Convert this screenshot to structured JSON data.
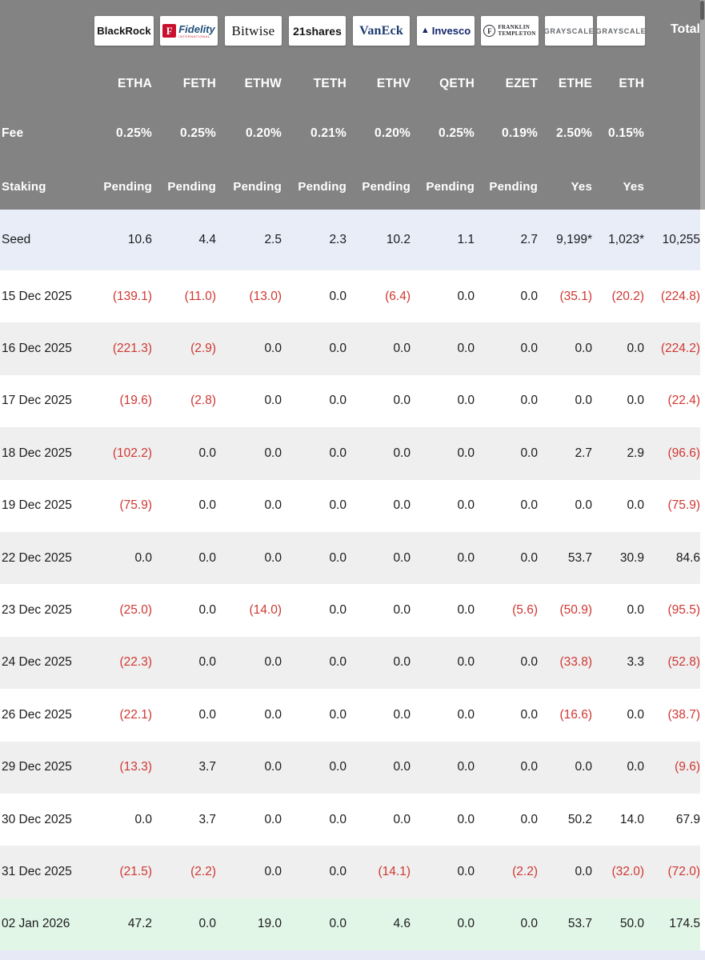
{
  "header": {
    "total_label": "Total",
    "row_labels": {
      "fee": "Fee",
      "staking": "Staking"
    },
    "providers": [
      {
        "name": "BlackRock",
        "logo_text": "BlackRock",
        "ticker": "ETHA",
        "fee": "0.25%",
        "staking": "Pending"
      },
      {
        "name": "Fidelity",
        "logo_text": "Fidelity",
        "logo_mark": "F",
        "logo_sub": "INTERNATIONAL",
        "ticker": "FETH",
        "fee": "0.25%",
        "staking": "Pending"
      },
      {
        "name": "Bitwise",
        "logo_text": "Bitwise",
        "ticker": "ETHW",
        "fee": "0.20%",
        "staking": "Pending"
      },
      {
        "name": "21shares",
        "logo_text": "21shares",
        "ticker": "TETH",
        "fee": "0.21%",
        "staking": "Pending"
      },
      {
        "name": "VanEck",
        "logo_text": "VanEck",
        "ticker": "ETHV",
        "fee": "0.20%",
        "staking": "Pending"
      },
      {
        "name": "Invesco",
        "logo_text": "Invesco",
        "logo_mark": "▲",
        "ticker": "QETH",
        "fee": "0.25%",
        "staking": "Pending"
      },
      {
        "name": "Franklin Templeton",
        "logo_text_line1": "FRANKLIN",
        "logo_text_line2": "TEMPLETON",
        "logo_mark": "F",
        "ticker": "EZET",
        "fee": "0.19%",
        "staking": "Pending"
      },
      {
        "name": "Grayscale",
        "logo_text": "GRAYSCALE",
        "ticker": "ETHE",
        "fee": "2.50%",
        "staking": "Yes"
      },
      {
        "name": "Grayscale",
        "logo_text": "GRAYSCALE",
        "ticker": "ETH",
        "fee": "0.15%",
        "staking": "Yes"
      }
    ]
  },
  "table": {
    "seed_row": {
      "label": "Seed",
      "values": [
        "10.6",
        "4.4",
        "2.5",
        "2.3",
        "10.2",
        "1.1",
        "2.7",
        "9,199*",
        "1,023*",
        "10,255"
      ]
    },
    "rows": [
      {
        "label": "15 Dec 2025",
        "values": [
          "(139.1)",
          "(11.0)",
          "(13.0)",
          "0.0",
          "(6.4)",
          "0.0",
          "0.0",
          "(35.1)",
          "(20.2)",
          "(224.8)"
        ]
      },
      {
        "label": "16 Dec 2025",
        "values": [
          "(221.3)",
          "(2.9)",
          "0.0",
          "0.0",
          "0.0",
          "0.0",
          "0.0",
          "0.0",
          "0.0",
          "(224.2)"
        ]
      },
      {
        "label": "17 Dec 2025",
        "values": [
          "(19.6)",
          "(2.8)",
          "0.0",
          "0.0",
          "0.0",
          "0.0",
          "0.0",
          "0.0",
          "0.0",
          "(22.4)"
        ]
      },
      {
        "label": "18 Dec 2025",
        "values": [
          "(102.2)",
          "0.0",
          "0.0",
          "0.0",
          "0.0",
          "0.0",
          "0.0",
          "2.7",
          "2.9",
          "(96.6)"
        ]
      },
      {
        "label": "19 Dec 2025",
        "values": [
          "(75.9)",
          "0.0",
          "0.0",
          "0.0",
          "0.0",
          "0.0",
          "0.0",
          "0.0",
          "0.0",
          "(75.9)"
        ]
      },
      {
        "label": "22 Dec 2025",
        "values": [
          "0.0",
          "0.0",
          "0.0",
          "0.0",
          "0.0",
          "0.0",
          "0.0",
          "53.7",
          "30.9",
          "84.6"
        ]
      },
      {
        "label": "23 Dec 2025",
        "values": [
          "(25.0)",
          "0.0",
          "(14.0)",
          "0.0",
          "0.0",
          "0.0",
          "(5.6)",
          "(50.9)",
          "0.0",
          "(95.5)"
        ]
      },
      {
        "label": "24 Dec 2025",
        "values": [
          "(22.3)",
          "0.0",
          "0.0",
          "0.0",
          "0.0",
          "0.0",
          "0.0",
          "(33.8)",
          "3.3",
          "(52.8)"
        ]
      },
      {
        "label": "26 Dec 2025",
        "values": [
          "(22.1)",
          "0.0",
          "0.0",
          "0.0",
          "0.0",
          "0.0",
          "0.0",
          "(16.6)",
          "0.0",
          "(38.7)"
        ]
      },
      {
        "label": "29 Dec 2025",
        "values": [
          "(13.3)",
          "3.7",
          "0.0",
          "0.0",
          "0.0",
          "0.0",
          "0.0",
          "0.0",
          "0.0",
          "(9.6)"
        ]
      },
      {
        "label": "30 Dec 2025",
        "values": [
          "0.0",
          "3.7",
          "0.0",
          "0.0",
          "0.0",
          "0.0",
          "0.0",
          "50.2",
          "14.0",
          "67.9"
        ]
      },
      {
        "label": "31 Dec 2025",
        "values": [
          "(21.5)",
          "(2.2)",
          "0.0",
          "0.0",
          "(14.1)",
          "0.0",
          "(2.2)",
          "0.0",
          "(32.0)",
          "(72.0)"
        ]
      },
      {
        "label": "02 Jan 2026",
        "values": [
          "47.2",
          "0.0",
          "19.0",
          "0.0",
          "4.6",
          "0.0",
          "0.0",
          "53.7",
          "50.0",
          "174.5"
        ],
        "highlight": "mint"
      }
    ]
  },
  "colors": {
    "header_bg": "#838383",
    "seed_bg": "#e9edf8",
    "row_alt": "#efefef",
    "mint_bg": "#e2f6e7",
    "partial_bg": "#e7eaf6",
    "neg_red": "#cf3732",
    "fidelity_red": "#c8102e",
    "fidelity_navy": "#1f4e79",
    "navy": "#13276b",
    "grayscale_grey": "#63676c"
  }
}
